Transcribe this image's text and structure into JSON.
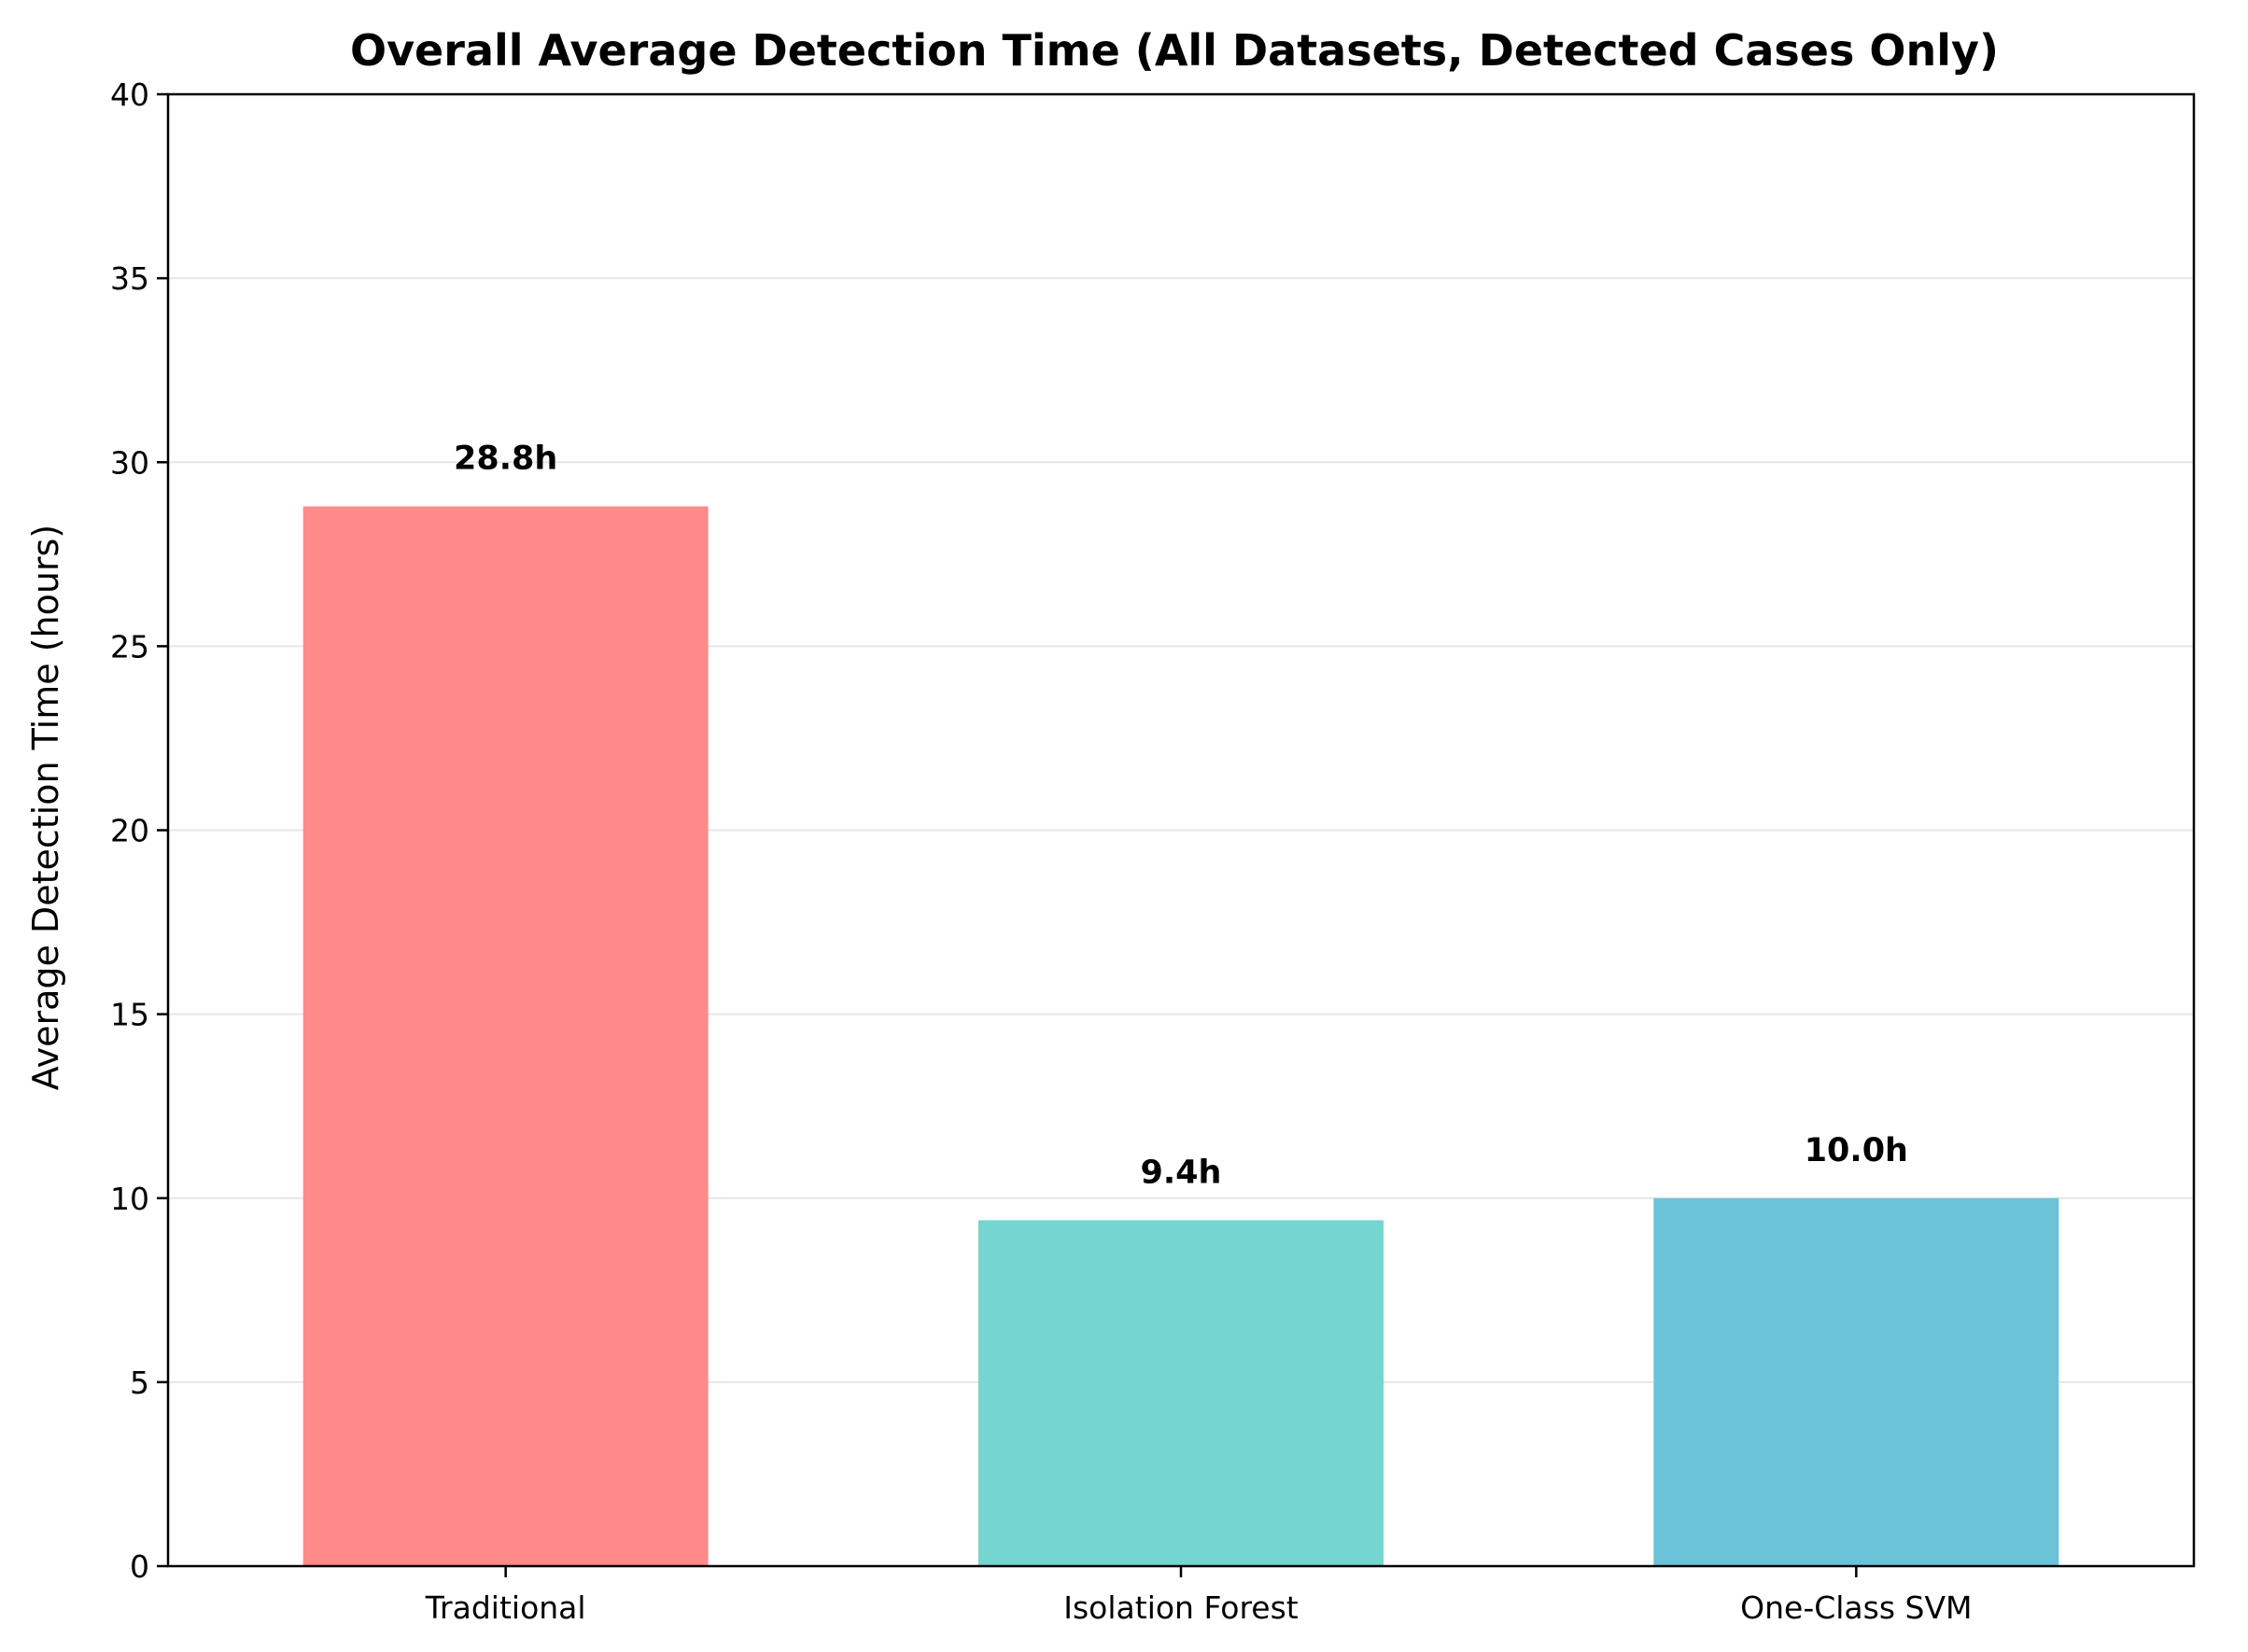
{
  "chart_data": {
    "type": "bar",
    "title": "Overall Average Detection Time (All Datasets, Detected Cases Only)",
    "xlabel": "",
    "ylabel": "Average Detection Time (hours)",
    "ylim": [
      0,
      40
    ],
    "yticks": [
      0,
      5,
      10,
      15,
      20,
      25,
      30,
      35,
      40
    ],
    "grid": "y-major",
    "categories": [
      "Traditional",
      "Isolation Forest",
      "One-Class SVM"
    ],
    "values": [
      28.8,
      9.4,
      10.0
    ],
    "value_labels": [
      "28.8h",
      "9.4h",
      "10.0h"
    ],
    "colors": [
      "#ff8a8a",
      "#75d5cf",
      "#6bc3d9"
    ]
  }
}
